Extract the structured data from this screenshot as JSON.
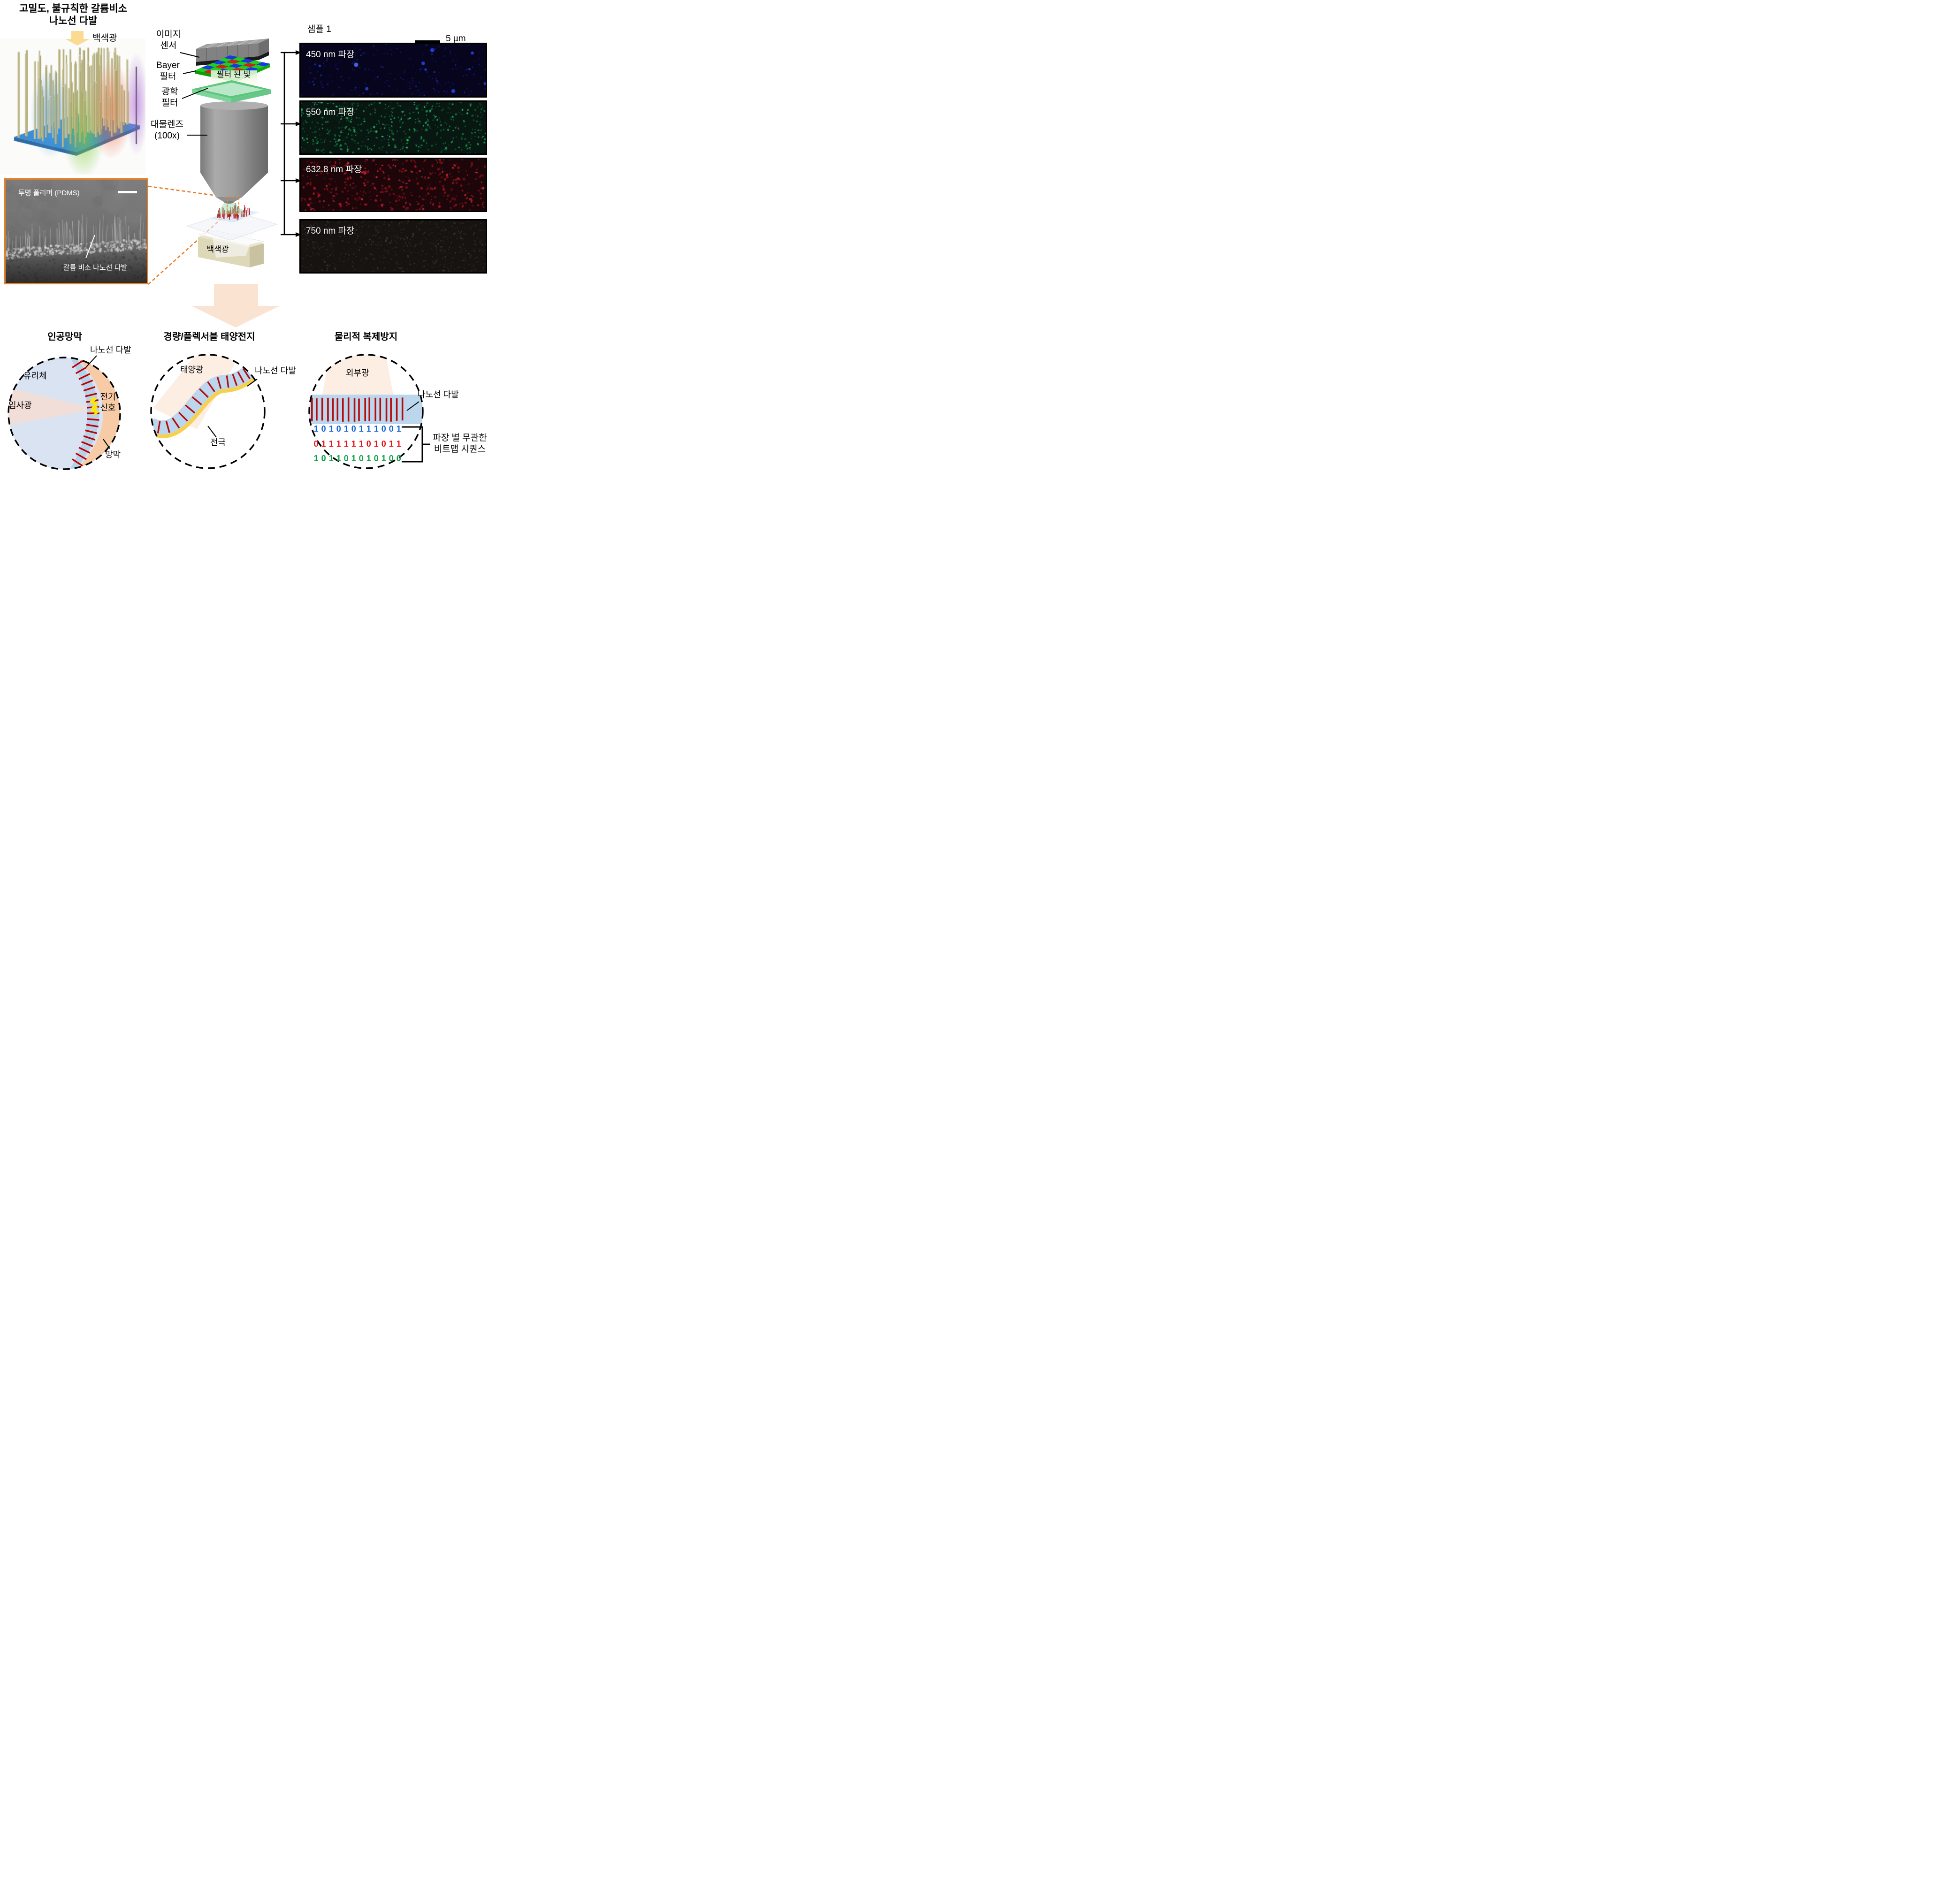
{
  "figure": {
    "top_left": {
      "title_line1": "고밀도, 불규칙한 갈륨비소",
      "title_line2": "나노선 다발",
      "white_light": "백색광"
    },
    "sem": {
      "polymer": "투명 폴리머 (PDMS)",
      "nanowire": "갈륨 비소 나노선 다발"
    },
    "microscope": {
      "image_sensor_l1": "이미지",
      "image_sensor_l2": "센서",
      "bayer_l1": "Bayer",
      "bayer_l2": "필터",
      "filtered_light": "필터 된 빛",
      "optical_l1": "광학",
      "optical_l2": "필터",
      "objective_l1": "대물렌즈",
      "objective_l2": "(100x)",
      "white_light_source": "백색광"
    },
    "right_panels": {
      "sample": "샘플 1",
      "scale": "5 µm",
      "panels": [
        {
          "label": "450 nm 파장"
        },
        {
          "label": "550 nm 파장"
        },
        {
          "label": "632.8 nm 파장"
        },
        {
          "label": "750 nm 파장"
        }
      ]
    },
    "applications": {
      "retina": {
        "title": "인공망막",
        "nanowire": "나노선 다발",
        "vitreous": "유리체",
        "incident": "입사광",
        "electric_l1": "전기",
        "electric_l2": "신호",
        "retina": "망막"
      },
      "solar": {
        "title": "경량/플렉서블 태양전지",
        "sun": "태양광",
        "nanowire": "나노선 다발",
        "electrode": "전극"
      },
      "puf": {
        "title": "물리적 복제방지",
        "external": "외부광",
        "nanowire": "나노선 다발",
        "bitmap_l1": "파장 별 무관한",
        "bitmap_l2": "비트맵 시퀀스",
        "bit_rows": [
          {
            "color": "#1565d8",
            "bits": "1 0 1 0 1 0 1 1 1 0 0 1"
          },
          {
            "color": "#e8101a",
            "bits": "0 1 1 1 1 1 1 0 1 0 1 1"
          },
          {
            "color": "#0fa04a",
            "bits": "1 0 1 1 0 1 0 1 0 1 0 0"
          }
        ]
      }
    },
    "colors": {
      "accent_orange": "#e0802c",
      "arrow_yellow": "#fbda92",
      "arrow_peach": "#fbe3d2",
      "nanowire_red": "#b50d0d",
      "band_blue": "#bcd6ee",
      "retina_orange": "#f6cba6",
      "electrode_yellow": "#f7d14b"
    }
  }
}
